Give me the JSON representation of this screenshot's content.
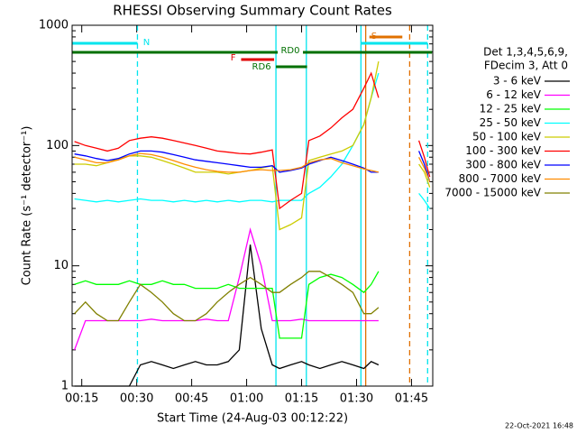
{
  "chart_data": {
    "type": "line",
    "title": "RHESSI Observing Summary Count Rates",
    "xlabel": "Start Time (24-Aug-03 00:12:22)",
    "ylabel": "Count Rate (s⁻¹ detector⁻¹)",
    "footer": "22-Oct-2021 16:48",
    "legend_header": [
      "Det 1,3,4,5,6,9,",
      "FDecim 3, Att 0"
    ],
    "log_y": true,
    "xlim": [
      12.37,
      110.8
    ],
    "ylim": [
      1,
      1000
    ],
    "xticks": [
      {
        "value": 15,
        "label": "00:15"
      },
      {
        "value": 30,
        "label": "00:30"
      },
      {
        "value": 45,
        "label": "00:45"
      },
      {
        "value": 60,
        "label": "01:00"
      },
      {
        "value": 75,
        "label": "01:15"
      },
      {
        "value": 90,
        "label": "01:30"
      },
      {
        "value": 105,
        "label": "01:45"
      }
    ],
    "yticks": [
      1,
      10,
      100,
      1000
    ],
    "x": [
      13,
      16,
      19,
      22,
      25,
      28,
      31,
      34,
      37,
      40,
      43,
      46,
      49,
      52,
      55,
      58,
      61,
      64,
      67,
      69,
      72,
      75,
      77,
      80,
      83,
      86,
      89,
      92,
      94,
      96,
      100,
      107,
      108.5,
      110
    ],
    "series": [
      {
        "name": "3 - 6 keV",
        "color": "#000000",
        "values": [
          1,
          1,
          1,
          1,
          1,
          1,
          1.5,
          1.6,
          1.5,
          1.4,
          1.5,
          1.6,
          1.5,
          1.5,
          1.6,
          2,
          15,
          3,
          1.5,
          1.4,
          1.5,
          1.6,
          1.5,
          1.4,
          1.5,
          1.6,
          1.5,
          1.4,
          1.6,
          1.5,
          null,
          null,
          null,
          null
        ]
      },
      {
        "name": "6 - 12 keV",
        "color": "#ff00ff",
        "values": [
          2,
          3.5,
          3.5,
          3.5,
          3.5,
          3.5,
          3.5,
          3.6,
          3.5,
          3.5,
          3.5,
          3.5,
          3.6,
          3.5,
          3.5,
          8,
          20,
          10,
          3.5,
          3.5,
          3.5,
          3.6,
          3.5,
          3.5,
          3.5,
          3.5,
          3.5,
          3.5,
          3.5,
          3.5,
          null,
          null,
          null,
          null
        ]
      },
      {
        "name": "12 - 25 keV",
        "color": "#00ff00",
        "values": [
          7,
          7.5,
          7,
          7,
          7,
          7.5,
          7,
          7,
          7.5,
          7,
          7,
          6.5,
          6.5,
          6.5,
          7,
          6.5,
          6.5,
          6.5,
          6.5,
          2.5,
          2.5,
          2.5,
          7,
          8,
          8.5,
          8,
          7,
          6,
          7,
          9,
          null,
          null,
          null,
          null
        ]
      },
      {
        "name": "25 - 50 keV",
        "color": "#00ffff",
        "values": [
          36,
          35,
          34,
          35,
          34,
          35,
          36,
          35,
          35,
          34,
          35,
          34,
          35,
          34,
          35,
          34,
          35,
          35,
          34,
          35,
          35,
          35,
          40,
          45,
          55,
          70,
          100,
          150,
          250,
          400,
          null,
          40,
          35,
          30
        ]
      },
      {
        "name": "50 - 100 keV",
        "color": "#cccc00",
        "values": [
          70,
          70,
          68,
          72,
          78,
          82,
          82,
          80,
          75,
          70,
          65,
          60,
          60,
          60,
          58,
          60,
          62,
          65,
          68,
          20,
          22,
          25,
          75,
          80,
          85,
          90,
          100,
          150,
          250,
          500,
          null,
          70,
          60,
          45
        ]
      },
      {
        "name": "100 - 300 keV",
        "color": "#ff0000",
        "values": [
          108,
          100,
          95,
          90,
          95,
          110,
          115,
          118,
          115,
          110,
          105,
          100,
          95,
          90,
          88,
          86,
          85,
          88,
          92,
          30,
          35,
          40,
          110,
          120,
          140,
          170,
          200,
          300,
          400,
          250,
          null,
          110,
          80,
          55
        ]
      },
      {
        "name": "300 - 800 keV",
        "color": "#0000ff",
        "values": [
          85,
          82,
          78,
          75,
          78,
          85,
          90,
          90,
          88,
          84,
          80,
          76,
          74,
          72,
          70,
          68,
          66,
          66,
          68,
          60,
          62,
          65,
          70,
          75,
          80,
          75,
          70,
          65,
          60,
          60,
          null,
          90,
          70,
          50
        ]
      },
      {
        "name": "800 - 7000 keV",
        "color": "#ff8c00",
        "values": [
          80,
          76,
          72,
          72,
          76,
          82,
          86,
          84,
          80,
          75,
          70,
          66,
          63,
          61,
          60,
          60,
          62,
          63,
          62,
          62,
          63,
          66,
          72,
          76,
          78,
          72,
          68,
          64,
          62,
          60,
          null,
          80,
          65,
          50
        ]
      },
      {
        "name": "7000 - 15000 keV",
        "color": "#808000",
        "values": [
          4,
          5,
          4,
          3.5,
          3.5,
          5,
          7,
          6,
          5,
          4,
          3.5,
          3.5,
          4,
          5,
          6,
          7,
          8,
          7,
          6,
          6,
          7,
          8,
          9,
          9,
          8,
          7,
          6,
          4,
          4,
          4.5,
          null,
          null,
          null,
          null
        ]
      }
    ],
    "flags": [
      {
        "label": "N",
        "color": "#00e5ee",
        "spans": [
          [
            12.37,
            30.2
          ],
          [
            91.3,
            109.4
          ]
        ]
      },
      {
        "label": "F",
        "color": "#e00000",
        "spans": [
          [
            58.5,
            67.5
          ]
        ]
      },
      {
        "label": "RD0",
        "color": "#007000",
        "spans": [
          [
            12.37,
            110.6
          ]
        ]
      },
      {
        "label": "RD6",
        "color": "#007000",
        "spans": [
          [
            68,
            76.5
          ]
        ]
      },
      {
        "label": "S",
        "color": "#e07000",
        "spans": [
          [
            93.5,
            102.5
          ]
        ]
      }
    ],
    "events": [
      {
        "x": 30.2,
        "color": "#00e5ee",
        "dashed": true
      },
      {
        "x": 68,
        "color": "#00e5ee",
        "dashed": false
      },
      {
        "x": 76.3,
        "color": "#00e5ee",
        "dashed": false
      },
      {
        "x": 91.2,
        "color": "#00e5ee",
        "dashed": false
      },
      {
        "x": 92.5,
        "color": "#e07000",
        "dashed": false
      },
      {
        "x": 104.5,
        "color": "#e07000",
        "dashed": true
      },
      {
        "x": 109.4,
        "color": "#00e5ee",
        "dashed": true
      }
    ]
  }
}
